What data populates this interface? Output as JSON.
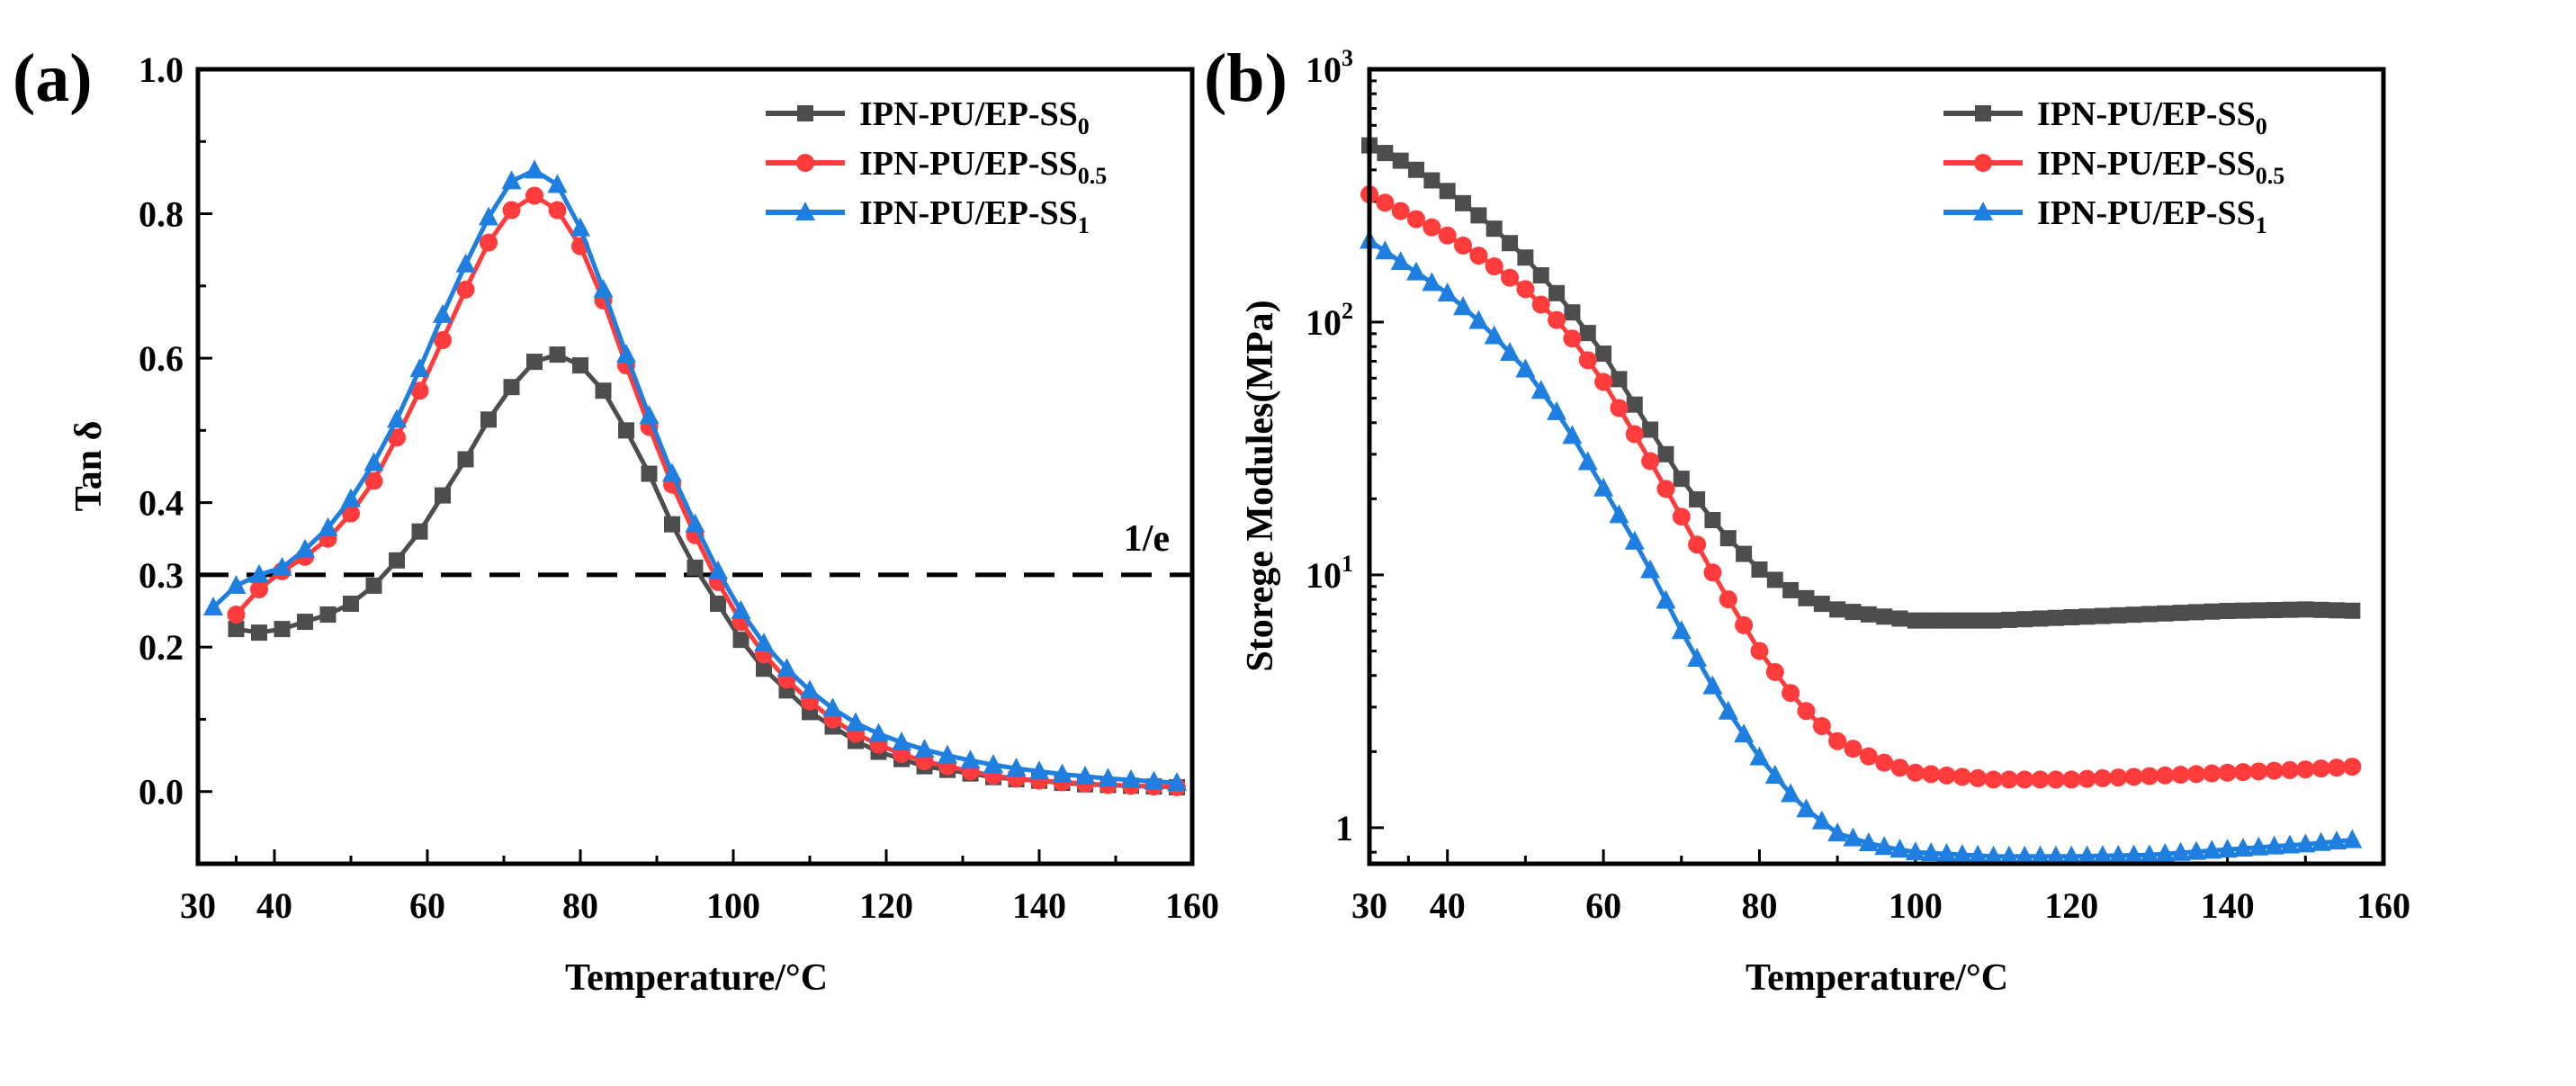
{
  "chart_data": [
    {
      "type": "line",
      "panel_label": "(a)",
      "xlabel": "Temperature/°C",
      "ylabel": "Tan δ",
      "xlim": [
        30,
        160
      ],
      "ylim": [
        -0.1,
        1.0
      ],
      "xticks": [
        30,
        40,
        60,
        80,
        100,
        120,
        140,
        160
      ],
      "yticks": [
        "0.0",
        "0.2",
        "0.3",
        "0.4",
        "0.6",
        "0.8",
        "1.0"
      ],
      "yscale": "linear",
      "legend_position": "top-right",
      "reference_line": {
        "y": 0.3,
        "label": "1/e",
        "style": "dashed"
      },
      "series": [
        {
          "name": "IPN-PU/EP-SS",
          "sub": "0",
          "color": "#4d4d4d",
          "marker": "square",
          "x": [
            35,
            38,
            41,
            44,
            47,
            50,
            53,
            56,
            59,
            62,
            65,
            68,
            71,
            74,
            77,
            80,
            83,
            86,
            89,
            92,
            95,
            98,
            101,
            104,
            107,
            110,
            113,
            116,
            119,
            122,
            125,
            128,
            131,
            134,
            137,
            140,
            143,
            146,
            149,
            152,
            155,
            158
          ],
          "y": [
            0.225,
            0.22,
            0.225,
            0.235,
            0.245,
            0.26,
            0.285,
            0.32,
            0.36,
            0.41,
            0.46,
            0.515,
            0.56,
            0.595,
            0.605,
            0.59,
            0.555,
            0.5,
            0.44,
            0.37,
            0.31,
            0.26,
            0.21,
            0.17,
            0.14,
            0.11,
            0.09,
            0.07,
            0.055,
            0.045,
            0.035,
            0.03,
            0.025,
            0.02,
            0.017,
            0.015,
            0.012,
            0.01,
            0.009,
            0.008,
            0.007,
            0.006
          ]
        },
        {
          "name": "IPN-PU/EP-SS",
          "sub": "0.5",
          "color": "#ff3b3b",
          "marker": "circle",
          "x": [
            35,
            38,
            41,
            44,
            47,
            50,
            53,
            56,
            59,
            62,
            65,
            68,
            71,
            74,
            77,
            80,
            83,
            86,
            89,
            92,
            95,
            98,
            101,
            104,
            107,
            110,
            113,
            116,
            119,
            122,
            125,
            128,
            131,
            134,
            137,
            140,
            143,
            146,
            149,
            152,
            155,
            158
          ],
          "y": [
            0.245,
            0.28,
            0.305,
            0.325,
            0.35,
            0.385,
            0.43,
            0.49,
            0.555,
            0.625,
            0.695,
            0.76,
            0.805,
            0.825,
            0.805,
            0.755,
            0.68,
            0.59,
            0.505,
            0.425,
            0.355,
            0.29,
            0.235,
            0.19,
            0.155,
            0.125,
            0.1,
            0.08,
            0.065,
            0.052,
            0.042,
            0.035,
            0.028,
            0.022,
            0.018,
            0.015,
            0.013,
            0.011,
            0.009,
            0.008,
            0.007,
            0.006
          ]
        },
        {
          "name": "IPN-PU/EP-SS",
          "sub": "1",
          "color": "#1e7fe0",
          "marker": "triangle",
          "x": [
            32,
            35,
            38,
            41,
            44,
            47,
            50,
            53,
            56,
            59,
            62,
            65,
            68,
            71,
            74,
            77,
            80,
            83,
            86,
            89,
            92,
            95,
            98,
            101,
            104,
            107,
            110,
            113,
            116,
            119,
            122,
            125,
            128,
            131,
            134,
            137,
            140,
            143,
            146,
            149,
            152,
            155,
            158
          ],
          "y": [
            0.255,
            0.285,
            0.3,
            0.31,
            0.335,
            0.365,
            0.405,
            0.455,
            0.515,
            0.585,
            0.66,
            0.73,
            0.795,
            0.845,
            0.86,
            0.84,
            0.78,
            0.695,
            0.605,
            0.52,
            0.44,
            0.37,
            0.305,
            0.25,
            0.205,
            0.17,
            0.14,
            0.115,
            0.095,
            0.08,
            0.068,
            0.058,
            0.05,
            0.043,
            0.037,
            0.032,
            0.028,
            0.024,
            0.021,
            0.018,
            0.016,
            0.014,
            0.012
          ]
        }
      ]
    },
    {
      "type": "line",
      "panel_label": "(b)",
      "xlabel": "Temperature/°C",
      "ylabel": "Storege Modules(MPa)",
      "xlim": [
        30,
        160
      ],
      "ylim": [
        0.72,
        1000
      ],
      "xticks": [
        30,
        40,
        60,
        80,
        100,
        120,
        140,
        160
      ],
      "yticks": [
        {
          "value": 1,
          "base": "1",
          "exp": ""
        },
        {
          "value": 10,
          "base": "10",
          "exp": "1"
        },
        {
          "value": 100,
          "base": "10",
          "exp": "2"
        },
        {
          "value": 1000,
          "base": "10",
          "exp": "3"
        }
      ],
      "yscale": "log",
      "legend_position": "top-right",
      "series": [
        {
          "name": "IPN-PU/EP-SS",
          "sub": "0",
          "color": "#4d4d4d",
          "marker": "square",
          "x": [
            30,
            35,
            40,
            45,
            50,
            55,
            60,
            65,
            70,
            75,
            80,
            85,
            90,
            95,
            100,
            110,
            120,
            130,
            140,
            150,
            157
          ],
          "y": [
            500,
            420,
            330,
            250,
            180,
            120,
            75,
            42,
            24,
            15,
            10.5,
            8.3,
            7.3,
            6.9,
            6.6,
            6.6,
            6.8,
            7.0,
            7.2,
            7.3,
            7.2
          ]
        },
        {
          "name": "IPN-PU/EP-SS",
          "sub": "0.5",
          "color": "#ff3b3b",
          "marker": "circle",
          "x": [
            30,
            35,
            40,
            45,
            50,
            55,
            60,
            65,
            70,
            75,
            80,
            85,
            90,
            95,
            100,
            110,
            120,
            130,
            140,
            150,
            157
          ],
          "y": [
            320,
            265,
            220,
            175,
            135,
            95,
            58,
            32,
            17,
            9,
            5,
            3.1,
            2.2,
            1.85,
            1.65,
            1.55,
            1.55,
            1.6,
            1.65,
            1.7,
            1.75
          ]
        },
        {
          "name": "IPN-PU/EP-SS",
          "sub": "1",
          "color": "#1e7fe0",
          "marker": "triangle",
          "x": [
            30,
            35,
            40,
            45,
            50,
            55,
            60,
            65,
            70,
            75,
            80,
            85,
            90,
            95,
            100,
            110,
            120,
            130,
            140,
            150,
            157
          ],
          "y": [
            210,
            165,
            130,
            95,
            65,
            40,
            22,
            12,
            6,
            3.2,
            1.9,
            1.25,
            0.95,
            0.85,
            0.8,
            0.77,
            0.77,
            0.78,
            0.82,
            0.86,
            0.9
          ]
        }
      ]
    }
  ]
}
